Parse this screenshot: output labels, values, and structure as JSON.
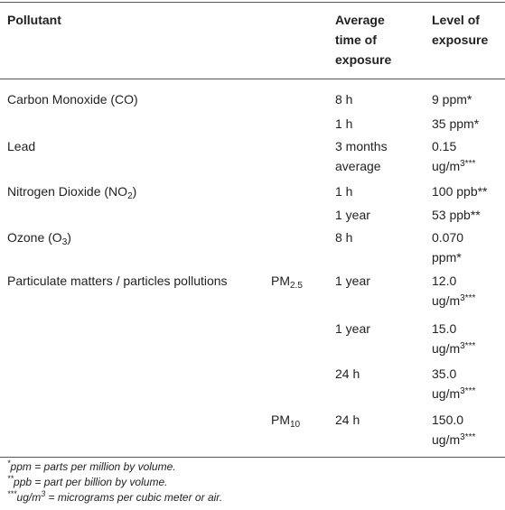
{
  "header": {
    "pollutant": "Pollutant",
    "avg_time": [
      "Average",
      "time of",
      "exposure"
    ],
    "level": [
      "Level of",
      "exposure"
    ]
  },
  "rows": {
    "co": {
      "name": "Carbon Monoxide (CO)",
      "t1": "8 h",
      "l1": "9 ppm*",
      "t2": "1 h",
      "l2": "35 ppm*"
    },
    "lead": {
      "name": "Lead",
      "t1a": "3 months",
      "t1b": "average",
      "l1a": "0.15",
      "l1b": "ug/m",
      "l1sup": "3***"
    },
    "no2": {
      "name_pre": "Nitrogen Dioxide (NO",
      "name_sub": "2",
      "name_post": ")",
      "t1": "1 h",
      "l1": "100 ppb**",
      "t2": "1 year",
      "l2": "53 ppb**"
    },
    "o3": {
      "name_pre": "Ozone (O",
      "name_sub": "3",
      "name_post": ")",
      "t1": "8 h",
      "l1a": "0.070",
      "l1b": "ppm*"
    },
    "pm": {
      "name": "Particulate matters / particles pollutions",
      "pm25_pre": "PM",
      "pm25_sub": "2.5",
      "pm10_pre": "PM",
      "pm10_sub": "10",
      "r1": {
        "t": "1 year",
        "la": "12.0",
        "lb": "ug/m",
        "lsup": "3***"
      },
      "r2": {
        "t": "1 year",
        "la": "15.0",
        "lb": "ug/m",
        "lsup": "3***"
      },
      "r3": {
        "t": "24 h",
        "la": "35.0",
        "lb": "ug/m",
        "lsup": "3***"
      },
      "r4": {
        "t": "24 h",
        "la": "150.0",
        "lb": "ug/m",
        "lsup": "3***"
      }
    }
  },
  "footnotes": {
    "f1_mark": "*",
    "f1_text": "ppm = parts per million by volume.",
    "f2_mark": "**",
    "f2_text": "ppb = part per billion by volume.",
    "f3_mark": "***",
    "f3_pre": "ug/m",
    "f3_sup": "3",
    "f3_text": " = micrograms per cubic meter or air."
  }
}
